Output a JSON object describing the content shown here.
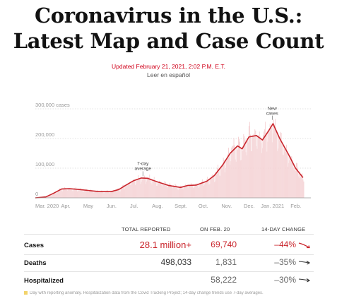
{
  "headline": {
    "line1": "Coronavirus in the U.S.:",
    "line2": "Latest Map and Case Count"
  },
  "updated": "Updated February 21, 2021, 2:02 P.M. E.T.",
  "espanol_link": "Leer en español",
  "chart_data": {
    "type": "bar",
    "title": "",
    "ylabel": "",
    "ylim": [
      0,
      300000
    ],
    "y_ticks": [
      {
        "value": 0,
        "label": "0"
      },
      {
        "value": 100000,
        "label": "100,000"
      },
      {
        "value": 200000,
        "label": "200,000"
      },
      {
        "value": 300000,
        "label": "300,000 cases"
      }
    ],
    "x_ticks": [
      "Mar. 2020",
      "Apr.",
      "May",
      "Jun.",
      "Jul.",
      "Aug.",
      "Sept.",
      "Oct.",
      "Nov.",
      "Dec.",
      "Jan. 2021",
      "Feb."
    ],
    "annotations": [
      "7-day average",
      "New cases"
    ],
    "grid": true,
    "colors": {
      "bars": "#f2c3c6",
      "line": "#c9252c",
      "fill": "#f6dadc"
    },
    "series": [
      {
        "name": "7-day average",
        "points": [
          [
            "2020-03-01",
            0
          ],
          [
            "2020-03-15",
            3000
          ],
          [
            "2020-03-25",
            15000
          ],
          [
            "2020-04-05",
            30000
          ],
          [
            "2020-04-15",
            31000
          ],
          [
            "2020-04-25",
            29000
          ],
          [
            "2020-05-10",
            25000
          ],
          [
            "2020-05-25",
            21000
          ],
          [
            "2020-06-10",
            21000
          ],
          [
            "2020-06-20",
            28000
          ],
          [
            "2020-07-01",
            45000
          ],
          [
            "2020-07-10",
            58000
          ],
          [
            "2020-07-20",
            67000
          ],
          [
            "2020-07-28",
            66000
          ],
          [
            "2020-08-10",
            54000
          ],
          [
            "2020-08-25",
            42000
          ],
          [
            "2020-09-10",
            35000
          ],
          [
            "2020-09-20",
            42000
          ],
          [
            "2020-10-01",
            43000
          ],
          [
            "2020-10-15",
            56000
          ],
          [
            "2020-10-25",
            75000
          ],
          [
            "2020-11-05",
            110000
          ],
          [
            "2020-11-15",
            150000
          ],
          [
            "2020-11-25",
            175000
          ],
          [
            "2020-12-01",
            165000
          ],
          [
            "2020-12-10",
            205000
          ],
          [
            "2020-12-20",
            210000
          ],
          [
            "2020-12-28",
            195000
          ],
          [
            "2021-01-05",
            225000
          ],
          [
            "2021-01-11",
            250000
          ],
          [
            "2021-01-20",
            200000
          ],
          [
            "2021-02-01",
            145000
          ],
          [
            "2021-02-10",
            100000
          ],
          [
            "2021-02-20",
            68000
          ]
        ]
      }
    ]
  },
  "table": {
    "headers": {
      "reported": "TOTAL REPORTED",
      "on_date": "ON FEB. 20",
      "change": "14-DAY CHANGE"
    },
    "rows": [
      {
        "label": "Cases",
        "total": "28.1 million+",
        "on_date": "69,740",
        "change": "–44%",
        "trend": "down-steep",
        "color": "#c9252c"
      },
      {
        "label": "Deaths",
        "total": "498,033",
        "on_date": "1,831",
        "change": "–35%",
        "trend": "down",
        "color": "#333333"
      },
      {
        "label": "Hospitalized",
        "total": "",
        "on_date": "58,222",
        "change": "–30%",
        "trend": "down",
        "color": "#333333"
      }
    ]
  },
  "footnote": "Day with reporting anomaly. Hospitalization data from the Covid Tracking Project; 14-day change trends use 7-day averages."
}
